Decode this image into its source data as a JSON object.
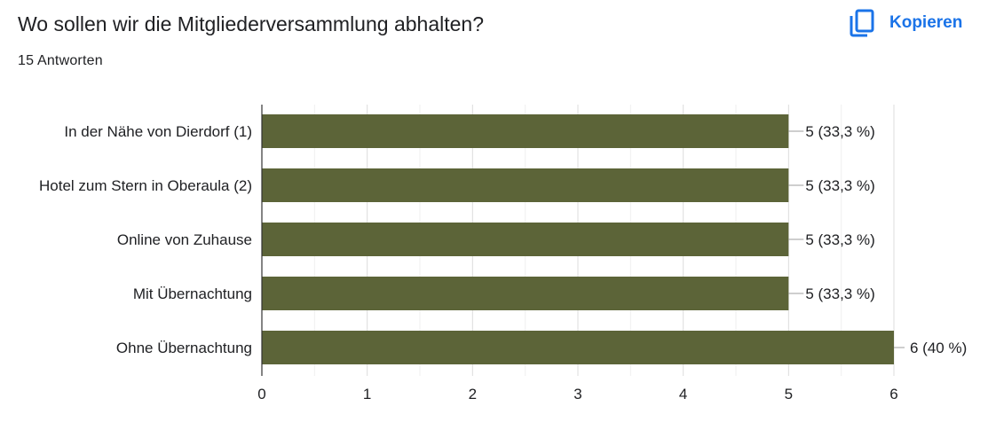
{
  "header": {
    "question": "Wo sollen wir die Mitgliederversammlung abhalten?",
    "response_count": "15 Antworten",
    "copy_label": "Kopieren"
  },
  "colors": {
    "bar": "#5c6438",
    "accent": "#1a73e8"
  },
  "icons": {
    "copy": "copy-icon"
  },
  "chart_data": {
    "type": "bar",
    "orientation": "horizontal",
    "categories": [
      "In der Nähe von Dierdorf (1)",
      "Hotel zum Stern in Oberaula (2)",
      "Online von Zuhause",
      "Mit Übernachtung",
      "Ohne Übernachtung"
    ],
    "values": [
      5,
      5,
      5,
      5,
      6
    ],
    "value_labels": [
      "5 (33,3 %)",
      "5 (33,3 %)",
      "5 (33,3 %)",
      "5 (33,3 %)",
      "6 (40 %)"
    ],
    "xlim": [
      0,
      6
    ],
    "xticks": [
      "0",
      "1",
      "2",
      "3",
      "4",
      "5",
      "6"
    ],
    "grid": true,
    "title": "",
    "xlabel": "",
    "ylabel": ""
  }
}
